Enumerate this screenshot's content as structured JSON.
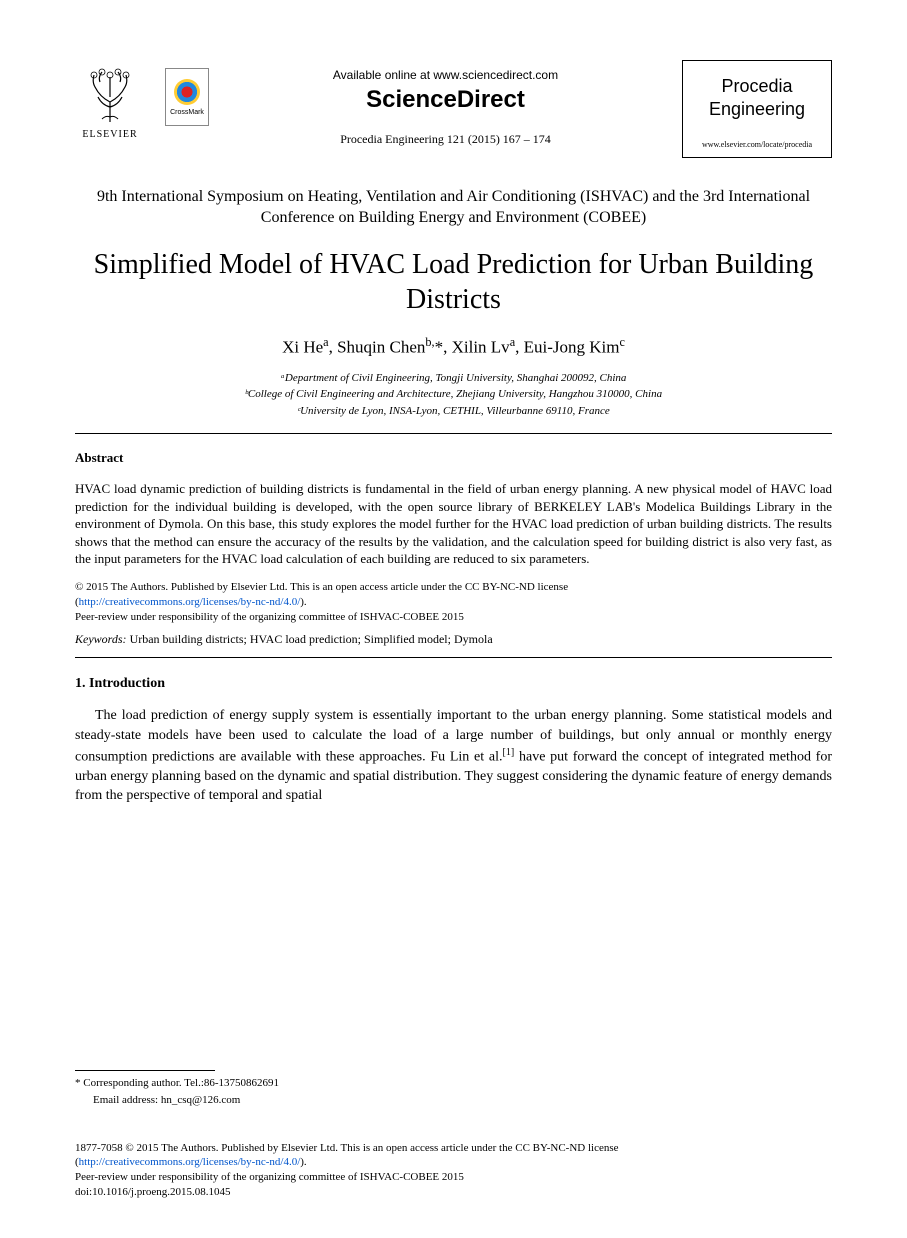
{
  "header": {
    "elsevier_label": "ELSEVIER",
    "crossmark_label": "CrossMark",
    "available_text": "Available online at www.sciencedirect.com",
    "sciencedirect": "ScienceDirect",
    "citation": "Procedia Engineering 121 (2015) 167 – 174",
    "journal_name_line1": "Procedia",
    "journal_name_line2": "Engineering",
    "journal_url": "www.elsevier.com/locate/procedia"
  },
  "conference": "9th International Symposium on Heating, Ventilation and Air Conditioning (ISHVAC) and the 3rd International Conference on Building Energy and Environment (COBEE)",
  "title": "Simplified Model of HVAC Load Prediction for Urban Building Districts",
  "authors_html": "Xi He<sup>a</sup>, Shuqin Chen<sup>b,</sup>*, Xilin Lv<sup>a</sup>, Eui-Jong Kim<sup>c</sup>",
  "affiliations": [
    "ᵃDepartment of Civil Engineering, Tongji University, Shanghai 200092, China",
    "ᵇCollege of Civil Engineering and Architecture, Zhejiang University, Hangzhou 310000, China",
    "ᶜUniversity de Lyon, INSA-Lyon, CETHIL, Villeurbanne 69110, France"
  ],
  "abstract": {
    "heading": "Abstract",
    "body": "HVAC load dynamic prediction of building districts is fundamental in the field of urban energy planning. A new physical model of HAVC load prediction for the individual building is developed, with the open source library of BERKELEY LAB's Modelica Buildings Library in the environment of Dymola. On this base, this study explores the model further for the HVAC load prediction of urban building districts. The results shows that the method can ensure the accuracy of the results by the validation, and the calculation speed for building district is also very fast, as the input parameters for the HVAC load calculation of each building are reduced to six parameters."
  },
  "license": {
    "line1": "© 2015 The Authors. Published by Elsevier Ltd. This is an open access article under the CC BY-NC-ND license",
    "link_text": "http://creativecommons.org/licenses/by-nc-nd/4.0/",
    "line2": "Peer-review under responsibility of the organizing committee of ISHVAC-COBEE 2015"
  },
  "keywords": {
    "label": "Keywords:",
    "text": " Urban building districts; HVAC load prediction; Simplified model; Dymola"
  },
  "section1": {
    "heading": "1. Introduction",
    "body_html": "The load prediction of energy supply system is essentially important to the urban energy planning. Some statistical models and steady-state models have been used to calculate the load of a large number of buildings, but only annual or monthly energy consumption predictions are available with these approaches. Fu Lin et al.<sup>[1]</sup> have put forward the concept of integrated method for urban energy planning based on the dynamic and spatial distribution. They suggest considering the dynamic feature of energy demands from the perspective of temporal and spatial"
  },
  "corresponding": {
    "line1": "* Corresponding author. Tel.:86-13750862691",
    "line2": "Email address: hn_csq@126.com"
  },
  "footer": {
    "line1": "1877-7058 © 2015 The Authors. Published by Elsevier Ltd. This is an open access article under the CC BY-NC-ND license",
    "link_text": "http://creativecommons.org/licenses/by-nc-nd/4.0/",
    "line2": "Peer-review under responsibility of the organizing committee of ISHVAC-COBEE 2015",
    "doi": "doi:10.1016/j.proeng.2015.08.1045"
  },
  "colors": {
    "text": "#000000",
    "background": "#ffffff",
    "link": "#0055cc",
    "rule": "#000000"
  },
  "typography": {
    "body_font": "Times New Roman",
    "title_fontsize": 28,
    "author_fontsize": 17,
    "body_fontsize": 14,
    "abstract_fontsize": 13,
    "footer_fontsize": 11
  }
}
